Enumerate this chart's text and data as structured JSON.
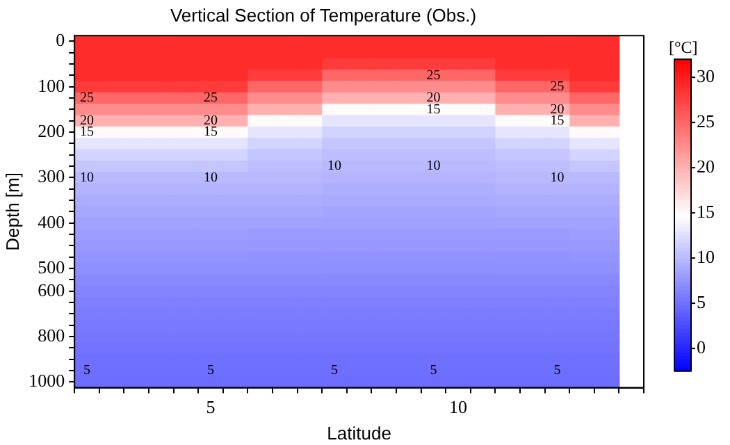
{
  "chart_data": {
    "type": "heatmap",
    "title": "Vertical Section of Temperature (Obs.)",
    "xlabel": "Latitude",
    "ylabel": "Depth [m]",
    "clabel": "[°C]",
    "categories": [
      null,
      null,
      null,
      null,
      null,
      "5",
      null,
      null,
      null,
      null,
      null,
      null,
      null,
      null,
      null,
      "10",
      null,
      null,
      null,
      null,
      null,
      null,
      null
    ],
    "y_categories": [
      "0",
      null,
      null,
      null,
      "100",
      null,
      null,
      null,
      "200",
      null,
      null,
      null,
      "300",
      null,
      null,
      null,
      "400",
      null,
      null,
      null,
      "500",
      null,
      "600",
      null,
      null,
      null,
      "800",
      null,
      null,
      null,
      "1000"
    ],
    "clim": [
      -2.5,
      32
    ],
    "cticks": [
      0,
      5,
      10,
      15,
      20,
      25,
      30
    ],
    "cells": [
      [
        29,
        29,
        29,
        29,
        29,
        29,
        29,
        29,
        29,
        29,
        29,
        29,
        29,
        29,
        29,
        29,
        29,
        29,
        29,
        29,
        29,
        29,
        null
      ],
      [
        29,
        29,
        29,
        29,
        29,
        29,
        29,
        29,
        29,
        29,
        29,
        29,
        29,
        29,
        29,
        29,
        29,
        29,
        29,
        29,
        29,
        29,
        null
      ],
      [
        29,
        29,
        29,
        29,
        29,
        29,
        29,
        29,
        29,
        29,
        28,
        28,
        28,
        28,
        28,
        28,
        28,
        29,
        29,
        29,
        29,
        29,
        null
      ],
      [
        29,
        29,
        29,
        29,
        29,
        29,
        29,
        28,
        28,
        28,
        25,
        25,
        25,
        25,
        25,
        25,
        25,
        28,
        28,
        28,
        29,
        29,
        null
      ],
      [
        28,
        28,
        28,
        28,
        28,
        28,
        28,
        25,
        25,
        25,
        22.5,
        22.5,
        22.5,
        22.5,
        22.5,
        22.5,
        22.5,
        25,
        25,
        25,
        28,
        28,
        null
      ],
      [
        25,
        25,
        25,
        25,
        25,
        25,
        25,
        22.5,
        22.5,
        22.5,
        20,
        20,
        20,
        20,
        20,
        20,
        20,
        22.5,
        22.5,
        22.5,
        25,
        25,
        null
      ],
      [
        22.5,
        22.5,
        22.5,
        22.5,
        22.5,
        22.5,
        22.5,
        20,
        20,
        20,
        15,
        15,
        15,
        15,
        15,
        15,
        15,
        20,
        20,
        20,
        22.5,
        22.5,
        null
      ],
      [
        20,
        20,
        20,
        20,
        20,
        20,
        20,
        15,
        15,
        15,
        13,
        13,
        13,
        13,
        13,
        13,
        13,
        15,
        15,
        15,
        20,
        20,
        null
      ],
      [
        15,
        15,
        15,
        15,
        15,
        15,
        15,
        13,
        13,
        13,
        11.8,
        11.8,
        11.8,
        11.8,
        11.8,
        11.8,
        11.8,
        13,
        13,
        13,
        15,
        15,
        null
      ],
      [
        13,
        13,
        13,
        13,
        13,
        13,
        13,
        11.8,
        11.8,
        11.8,
        10.8,
        10.8,
        10.8,
        10.8,
        10.8,
        10.8,
        10.8,
        11.8,
        11.8,
        11.8,
        13,
        13,
        null
      ],
      [
        11.8,
        11.8,
        11.8,
        11.8,
        11.8,
        11.8,
        11.8,
        10.8,
        10.8,
        10.8,
        10.3,
        10.3,
        10.3,
        10.3,
        10.3,
        10.3,
        10.3,
        10.8,
        10.8,
        10.8,
        11.8,
        11.8,
        null
      ],
      [
        10.8,
        10.8,
        10.8,
        10.8,
        10.8,
        10.8,
        10.8,
        10.3,
        10.3,
        10.3,
        10,
        10,
        10,
        10,
        10,
        10,
        10,
        10.3,
        10.3,
        10.3,
        10.8,
        10.8,
        null
      ],
      [
        10,
        10,
        10,
        10,
        10,
        10,
        10,
        10,
        10,
        10,
        9.7,
        9.7,
        9.7,
        9.7,
        9.7,
        9.7,
        9.7,
        10,
        10,
        10,
        10,
        10,
        null
      ],
      [
        9.6,
        9.6,
        9.6,
        9.6,
        9.6,
        9.6,
        9.6,
        9.6,
        9.6,
        9.6,
        9.3,
        9.3,
        9.3,
        9.3,
        9.3,
        9.3,
        9.3,
        9.6,
        9.6,
        9.6,
        9.6,
        9.6,
        null
      ],
      [
        9.2,
        9.2,
        9.2,
        9.2,
        9.2,
        9.2,
        9.2,
        9.2,
        9.2,
        9.2,
        9,
        9,
        9,
        9,
        9,
        9,
        9,
        9.2,
        9.2,
        9.2,
        9.2,
        9.2,
        null
      ],
      [
        8.8,
        8.8,
        8.8,
        8.8,
        8.8,
        8.8,
        8.8,
        8.8,
        8.8,
        8.8,
        8.6,
        8.6,
        8.6,
        8.6,
        8.6,
        8.6,
        8.6,
        8.8,
        8.8,
        8.8,
        8.8,
        8.8,
        null
      ],
      [
        8.4,
        8.4,
        8.4,
        8.4,
        8.4,
        8.4,
        8.4,
        8.4,
        8.4,
        8.4,
        8.3,
        8.3,
        8.3,
        8.3,
        8.3,
        8.3,
        8.3,
        8.4,
        8.4,
        8.4,
        8.4,
        8.4,
        null
      ],
      [
        8.1,
        8.1,
        8.1,
        8.1,
        8.1,
        8.1,
        8.1,
        8,
        8,
        8,
        8,
        8,
        8,
        8,
        8,
        8,
        8,
        8,
        8,
        8,
        8.1,
        8.1,
        null
      ],
      [
        7.8,
        7.8,
        7.8,
        7.8,
        7.8,
        7.8,
        7.8,
        7.7,
        7.7,
        7.7,
        7.7,
        7.7,
        7.7,
        7.7,
        7.7,
        7.7,
        7.7,
        7.7,
        7.7,
        7.7,
        7.8,
        7.8,
        null
      ],
      [
        7.5,
        7.5,
        7.5,
        7.5,
        7.5,
        7.5,
        7.5,
        7.4,
        7.4,
        7.4,
        7.4,
        7.4,
        7.4,
        7.4,
        7.4,
        7.4,
        7.4,
        7.4,
        7.4,
        7.4,
        7.5,
        7.5,
        null
      ],
      [
        7.2,
        7.2,
        7.2,
        7.2,
        7.2,
        7.2,
        7.2,
        7.2,
        7.2,
        7.2,
        7.1,
        7.1,
        7.1,
        7.1,
        7.1,
        7.1,
        7.1,
        7.2,
        7.2,
        7.2,
        7.2,
        7.2,
        null
      ],
      [
        6.8,
        6.8,
        6.8,
        6.8,
        6.8,
        6.8,
        6.8,
        6.8,
        6.8,
        6.8,
        6.8,
        6.8,
        6.8,
        6.8,
        6.8,
        6.8,
        6.8,
        6.8,
        6.8,
        6.8,
        6.8,
        6.8,
        null
      ],
      [
        6.4,
        6.4,
        6.4,
        6.4,
        6.4,
        6.4,
        6.4,
        6.4,
        6.4,
        6.4,
        6.4,
        6.4,
        6.4,
        6.4,
        6.4,
        6.4,
        6.4,
        6.4,
        6.4,
        6.4,
        6.4,
        6.4,
        null
      ],
      [
        6.1,
        6.1,
        6.1,
        6.1,
        6.1,
        6.1,
        6.1,
        6.1,
        6.1,
        6.1,
        6.1,
        6.1,
        6.1,
        6.1,
        6.1,
        6.1,
        6.1,
        6.1,
        6.1,
        6.1,
        6.1,
        6.1,
        null
      ],
      [
        5.9,
        5.9,
        5.9,
        5.9,
        5.9,
        5.9,
        5.9,
        5.9,
        5.9,
        5.9,
        5.9,
        5.9,
        5.9,
        5.9,
        5.9,
        5.9,
        5.9,
        5.9,
        5.9,
        5.9,
        5.9,
        5.9,
        null
      ],
      [
        5.7,
        5.7,
        5.7,
        5.7,
        5.7,
        5.7,
        5.7,
        5.7,
        5.7,
        5.7,
        5.7,
        5.7,
        5.7,
        5.7,
        5.7,
        5.7,
        5.7,
        5.7,
        5.7,
        5.7,
        5.7,
        5.7,
        null
      ],
      [
        5.5,
        5.5,
        5.5,
        5.5,
        5.5,
        5.5,
        5.5,
        5.5,
        5.5,
        5.5,
        5.5,
        5.5,
        5.5,
        5.5,
        5.5,
        5.5,
        5.5,
        5.5,
        5.5,
        5.5,
        5.5,
        5.5,
        null
      ],
      [
        5.3,
        5.3,
        5.3,
        5.3,
        5.3,
        5.3,
        5.3,
        5.3,
        5.3,
        5.3,
        5.3,
        5.3,
        5.3,
        5.3,
        5.3,
        5.3,
        5.3,
        5.3,
        5.3,
        5.3,
        5.3,
        5.3,
        null
      ],
      [
        5.1,
        5.1,
        5.1,
        5.1,
        5.1,
        5.1,
        5.1,
        5.1,
        5.1,
        5.1,
        5.1,
        5.1,
        5.1,
        5.1,
        5.1,
        5.1,
        5.1,
        5.1,
        5.1,
        5.1,
        5.1,
        5.1,
        null
      ],
      [
        5,
        5,
        5,
        5,
        5,
        5,
        5,
        5,
        5,
        5,
        5,
        5,
        5,
        5,
        5,
        5,
        5,
        5,
        5,
        5,
        5,
        5,
        null
      ],
      [
        4.8,
        4.8,
        4.8,
        4.8,
        4.8,
        4.8,
        4.8,
        4.8,
        4.8,
        4.8,
        4.8,
        4.8,
        4.8,
        4.8,
        4.8,
        4.8,
        4.8,
        4.8,
        4.8,
        4.8,
        4.8,
        4.8,
        null
      ]
    ],
    "cell_labels": [
      [
        null,
        null,
        null,
        null,
        null,
        null,
        null,
        null,
        null,
        null,
        null,
        null,
        null,
        null,
        null,
        null,
        null,
        null,
        null,
        null,
        null,
        null,
        null
      ],
      [
        null,
        null,
        null,
        null,
        null,
        null,
        null,
        null,
        null,
        null,
        null,
        null,
        null,
        null,
        null,
        null,
        null,
        null,
        null,
        null,
        null,
        null,
        null
      ],
      [
        null,
        null,
        null,
        null,
        null,
        null,
        null,
        null,
        null,
        null,
        null,
        null,
        null,
        null,
        null,
        null,
        null,
        null,
        null,
        null,
        null,
        null,
        null
      ],
      [
        null,
        null,
        null,
        null,
        null,
        null,
        null,
        null,
        null,
        null,
        null,
        null,
        null,
        null,
        "25",
        null,
        null,
        null,
        null,
        null,
        null,
        null,
        null
      ],
      [
        null,
        null,
        null,
        null,
        null,
        null,
        null,
        null,
        null,
        null,
        null,
        null,
        null,
        null,
        null,
        null,
        null,
        null,
        null,
        "25",
        null,
        null,
        null
      ],
      [
        "25",
        null,
        null,
        null,
        null,
        "25",
        null,
        null,
        null,
        null,
        null,
        null,
        null,
        null,
        "20",
        null,
        null,
        null,
        null,
        null,
        null,
        null,
        null
      ],
      [
        null,
        null,
        null,
        null,
        null,
        null,
        null,
        null,
        null,
        null,
        null,
        null,
        null,
        null,
        "15",
        null,
        null,
        null,
        null,
        "20",
        null,
        null,
        null
      ],
      [
        "20",
        null,
        null,
        null,
        null,
        "20",
        null,
        null,
        null,
        null,
        null,
        null,
        null,
        null,
        null,
        null,
        null,
        null,
        null,
        "15",
        null,
        null,
        null
      ],
      [
        "15",
        null,
        null,
        null,
        null,
        "15",
        null,
        null,
        null,
        null,
        null,
        null,
        null,
        null,
        null,
        null,
        null,
        null,
        null,
        null,
        null,
        null,
        null
      ],
      [
        null,
        null,
        null,
        null,
        null,
        null,
        null,
        null,
        null,
        null,
        null,
        null,
        null,
        null,
        null,
        null,
        null,
        null,
        null,
        null,
        null,
        null,
        null
      ],
      [
        null,
        null,
        null,
        null,
        null,
        null,
        null,
        null,
        null,
        null,
        null,
        null,
        null,
        null,
        null,
        null,
        null,
        null,
        null,
        null,
        null,
        null,
        null
      ],
      [
        null,
        null,
        null,
        null,
        null,
        null,
        null,
        null,
        null,
        null,
        "10",
        null,
        null,
        null,
        "10",
        null,
        null,
        null,
        null,
        null,
        null,
        null,
        null
      ],
      [
        "10",
        null,
        null,
        null,
        null,
        "10",
        null,
        null,
        null,
        null,
        null,
        null,
        null,
        null,
        null,
        null,
        null,
        null,
        null,
        "10",
        null,
        null,
        null
      ],
      [
        null,
        null,
        null,
        null,
        null,
        null,
        null,
        null,
        null,
        null,
        null,
        null,
        null,
        null,
        null,
        null,
        null,
        null,
        null,
        null,
        null,
        null,
        null
      ],
      [
        null,
        null,
        null,
        null,
        null,
        null,
        null,
        null,
        null,
        null,
        null,
        null,
        null,
        null,
        null,
        null,
        null,
        null,
        null,
        null,
        null,
        null,
        null
      ],
      [
        null,
        null,
        null,
        null,
        null,
        null,
        null,
        null,
        null,
        null,
        null,
        null,
        null,
        null,
        null,
        null,
        null,
        null,
        null,
        null,
        null,
        null,
        null
      ],
      [
        null,
        null,
        null,
        null,
        null,
        null,
        null,
        null,
        null,
        null,
        null,
        null,
        null,
        null,
        null,
        null,
        null,
        null,
        null,
        null,
        null,
        null,
        null
      ],
      [
        null,
        null,
        null,
        null,
        null,
        null,
        null,
        null,
        null,
        null,
        null,
        null,
        null,
        null,
        null,
        null,
        null,
        null,
        null,
        null,
        null,
        null,
        null
      ],
      [
        null,
        null,
        null,
        null,
        null,
        null,
        null,
        null,
        null,
        null,
        null,
        null,
        null,
        null,
        null,
        null,
        null,
        null,
        null,
        null,
        null,
        null,
        null
      ],
      [
        null,
        null,
        null,
        null,
        null,
        null,
        null,
        null,
        null,
        null,
        null,
        null,
        null,
        null,
        null,
        null,
        null,
        null,
        null,
        null,
        null,
        null,
        null
      ],
      [
        null,
        null,
        null,
        null,
        null,
        null,
        null,
        null,
        null,
        null,
        null,
        null,
        null,
        null,
        null,
        null,
        null,
        null,
        null,
        null,
        null,
        null,
        null
      ],
      [
        null,
        null,
        null,
        null,
        null,
        null,
        null,
        null,
        null,
        null,
        null,
        null,
        null,
        null,
        null,
        null,
        null,
        null,
        null,
        null,
        null,
        null,
        null
      ],
      [
        null,
        null,
        null,
        null,
        null,
        null,
        null,
        null,
        null,
        null,
        null,
        null,
        null,
        null,
        null,
        null,
        null,
        null,
        null,
        null,
        null,
        null,
        null
      ],
      [
        null,
        null,
        null,
        null,
        null,
        null,
        null,
        null,
        null,
        null,
        null,
        null,
        null,
        null,
        null,
        null,
        null,
        null,
        null,
        null,
        null,
        null,
        null
      ],
      [
        null,
        null,
        null,
        null,
        null,
        null,
        null,
        null,
        null,
        null,
        null,
        null,
        null,
        null,
        null,
        null,
        null,
        null,
        null,
        null,
        null,
        null,
        null
      ],
      [
        null,
        null,
        null,
        null,
        null,
        null,
        null,
        null,
        null,
        null,
        null,
        null,
        null,
        null,
        null,
        null,
        null,
        null,
        null,
        null,
        null,
        null,
        null
      ],
      [
        null,
        null,
        null,
        null,
        null,
        null,
        null,
        null,
        null,
        null,
        null,
        null,
        null,
        null,
        null,
        null,
        null,
        null,
        null,
        null,
        null,
        null,
        null
      ],
      [
        null,
        null,
        null,
        null,
        null,
        null,
        null,
        null,
        null,
        null,
        null,
        null,
        null,
        null,
        null,
        null,
        null,
        null,
        null,
        null,
        null,
        null,
        null
      ],
      [
        null,
        null,
        null,
        null,
        null,
        null,
        null,
        null,
        null,
        null,
        null,
        null,
        null,
        null,
        null,
        null,
        null,
        null,
        null,
        null,
        null,
        null,
        null
      ],
      [
        "5",
        null,
        null,
        null,
        null,
        "5",
        null,
        null,
        null,
        null,
        "5",
        null,
        null,
        null,
        "5",
        null,
        null,
        null,
        null,
        "5",
        null,
        null,
        null
      ],
      [
        null,
        null,
        null,
        null,
        null,
        null,
        null,
        null,
        null,
        null,
        null,
        null,
        null,
        null,
        null,
        null,
        null,
        null,
        null,
        null,
        null,
        null,
        null
      ]
    ]
  }
}
